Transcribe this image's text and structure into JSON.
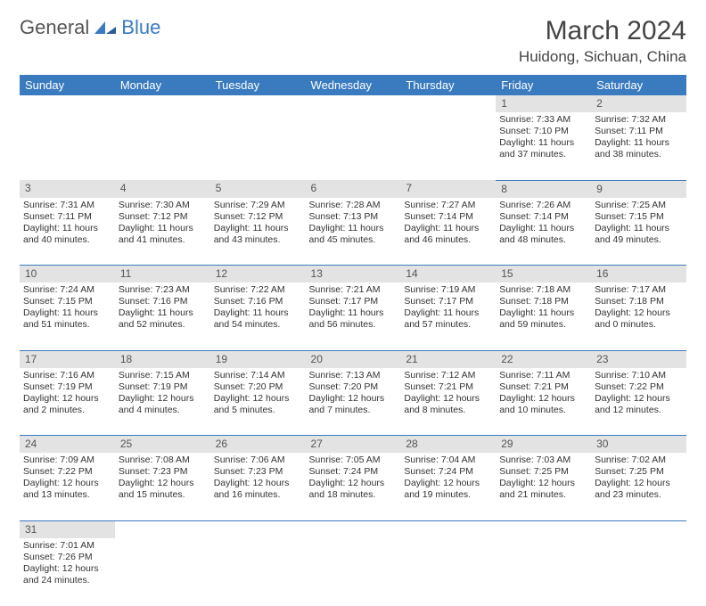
{
  "brand": {
    "part1": "General",
    "part2": "Blue"
  },
  "title": "March 2024",
  "location": "Huidong, Sichuan, China",
  "colors": {
    "header_bg": "#3a7bbf",
    "daynum_bg": "#e3e3e3",
    "border": "#3a7bbf",
    "text": "#333333"
  },
  "day_headers": [
    "Sunday",
    "Monday",
    "Tuesday",
    "Wednesday",
    "Thursday",
    "Friday",
    "Saturday"
  ],
  "weeks": [
    {
      "nums": [
        "",
        "",
        "",
        "",
        "",
        "1",
        "2"
      ],
      "cells": [
        null,
        null,
        null,
        null,
        null,
        {
          "sunrise": "7:33 AM",
          "sunset": "7:10 PM",
          "dl1": "Daylight: 11 hours",
          "dl2": "and 37 minutes."
        },
        {
          "sunrise": "7:32 AM",
          "sunset": "7:11 PM",
          "dl1": "Daylight: 11 hours",
          "dl2": "and 38 minutes."
        }
      ]
    },
    {
      "nums": [
        "3",
        "4",
        "5",
        "6",
        "7",
        "8",
        "9"
      ],
      "cells": [
        {
          "sunrise": "7:31 AM",
          "sunset": "7:11 PM",
          "dl1": "Daylight: 11 hours",
          "dl2": "and 40 minutes."
        },
        {
          "sunrise": "7:30 AM",
          "sunset": "7:12 PM",
          "dl1": "Daylight: 11 hours",
          "dl2": "and 41 minutes."
        },
        {
          "sunrise": "7:29 AM",
          "sunset": "7:12 PM",
          "dl1": "Daylight: 11 hours",
          "dl2": "and 43 minutes."
        },
        {
          "sunrise": "7:28 AM",
          "sunset": "7:13 PM",
          "dl1": "Daylight: 11 hours",
          "dl2": "and 45 minutes."
        },
        {
          "sunrise": "7:27 AM",
          "sunset": "7:14 PM",
          "dl1": "Daylight: 11 hours",
          "dl2": "and 46 minutes."
        },
        {
          "sunrise": "7:26 AM",
          "sunset": "7:14 PM",
          "dl1": "Daylight: 11 hours",
          "dl2": "and 48 minutes."
        },
        {
          "sunrise": "7:25 AM",
          "sunset": "7:15 PM",
          "dl1": "Daylight: 11 hours",
          "dl2": "and 49 minutes."
        }
      ]
    },
    {
      "nums": [
        "10",
        "11",
        "12",
        "13",
        "14",
        "15",
        "16"
      ],
      "cells": [
        {
          "sunrise": "7:24 AM",
          "sunset": "7:15 PM",
          "dl1": "Daylight: 11 hours",
          "dl2": "and 51 minutes."
        },
        {
          "sunrise": "7:23 AM",
          "sunset": "7:16 PM",
          "dl1": "Daylight: 11 hours",
          "dl2": "and 52 minutes."
        },
        {
          "sunrise": "7:22 AM",
          "sunset": "7:16 PM",
          "dl1": "Daylight: 11 hours",
          "dl2": "and 54 minutes."
        },
        {
          "sunrise": "7:21 AM",
          "sunset": "7:17 PM",
          "dl1": "Daylight: 11 hours",
          "dl2": "and 56 minutes."
        },
        {
          "sunrise": "7:19 AM",
          "sunset": "7:17 PM",
          "dl1": "Daylight: 11 hours",
          "dl2": "and 57 minutes."
        },
        {
          "sunrise": "7:18 AM",
          "sunset": "7:18 PM",
          "dl1": "Daylight: 11 hours",
          "dl2": "and 59 minutes."
        },
        {
          "sunrise": "7:17 AM",
          "sunset": "7:18 PM",
          "dl1": "Daylight: 12 hours",
          "dl2": "and 0 minutes."
        }
      ]
    },
    {
      "nums": [
        "17",
        "18",
        "19",
        "20",
        "21",
        "22",
        "23"
      ],
      "cells": [
        {
          "sunrise": "7:16 AM",
          "sunset": "7:19 PM",
          "dl1": "Daylight: 12 hours",
          "dl2": "and 2 minutes."
        },
        {
          "sunrise": "7:15 AM",
          "sunset": "7:19 PM",
          "dl1": "Daylight: 12 hours",
          "dl2": "and 4 minutes."
        },
        {
          "sunrise": "7:14 AM",
          "sunset": "7:20 PM",
          "dl1": "Daylight: 12 hours",
          "dl2": "and 5 minutes."
        },
        {
          "sunrise": "7:13 AM",
          "sunset": "7:20 PM",
          "dl1": "Daylight: 12 hours",
          "dl2": "and 7 minutes."
        },
        {
          "sunrise": "7:12 AM",
          "sunset": "7:21 PM",
          "dl1": "Daylight: 12 hours",
          "dl2": "and 8 minutes."
        },
        {
          "sunrise": "7:11 AM",
          "sunset": "7:21 PM",
          "dl1": "Daylight: 12 hours",
          "dl2": "and 10 minutes."
        },
        {
          "sunrise": "7:10 AM",
          "sunset": "7:22 PM",
          "dl1": "Daylight: 12 hours",
          "dl2": "and 12 minutes."
        }
      ]
    },
    {
      "nums": [
        "24",
        "25",
        "26",
        "27",
        "28",
        "29",
        "30"
      ],
      "cells": [
        {
          "sunrise": "7:09 AM",
          "sunset": "7:22 PM",
          "dl1": "Daylight: 12 hours",
          "dl2": "and 13 minutes."
        },
        {
          "sunrise": "7:08 AM",
          "sunset": "7:23 PM",
          "dl1": "Daylight: 12 hours",
          "dl2": "and 15 minutes."
        },
        {
          "sunrise": "7:06 AM",
          "sunset": "7:23 PM",
          "dl1": "Daylight: 12 hours",
          "dl2": "and 16 minutes."
        },
        {
          "sunrise": "7:05 AM",
          "sunset": "7:24 PM",
          "dl1": "Daylight: 12 hours",
          "dl2": "and 18 minutes."
        },
        {
          "sunrise": "7:04 AM",
          "sunset": "7:24 PM",
          "dl1": "Daylight: 12 hours",
          "dl2": "and 19 minutes."
        },
        {
          "sunrise": "7:03 AM",
          "sunset": "7:25 PM",
          "dl1": "Daylight: 12 hours",
          "dl2": "and 21 minutes."
        },
        {
          "sunrise": "7:02 AM",
          "sunset": "7:25 PM",
          "dl1": "Daylight: 12 hours",
          "dl2": "and 23 minutes."
        }
      ]
    },
    {
      "nums": [
        "31",
        "",
        "",
        "",
        "",
        "",
        ""
      ],
      "cells": [
        {
          "sunrise": "7:01 AM",
          "sunset": "7:26 PM",
          "dl1": "Daylight: 12 hours",
          "dl2": "and 24 minutes."
        },
        null,
        null,
        null,
        null,
        null,
        null
      ]
    }
  ]
}
